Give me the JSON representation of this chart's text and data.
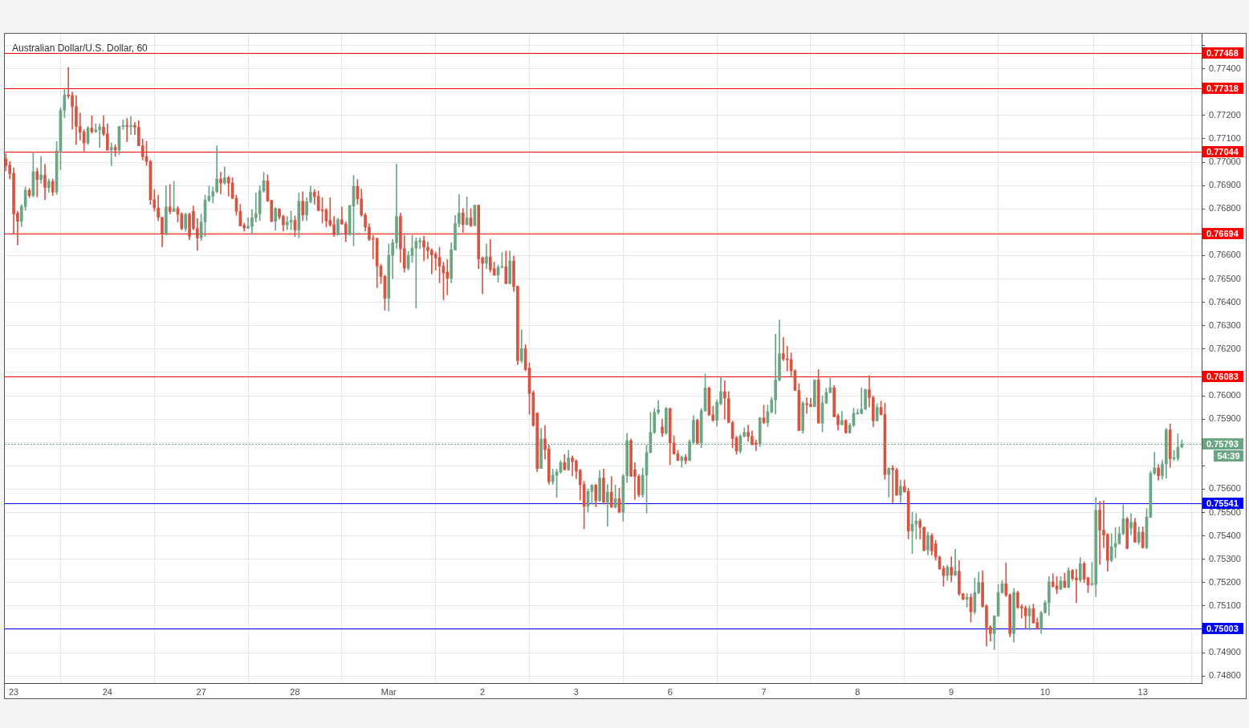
{
  "chart_data": {
    "type": "candlestick",
    "title": "Australian Dollar/U.S. Dollar, 60",
    "categories": [
      null,
      null,
      "23",
      null,
      null,
      null,
      null,
      null,
      null,
      null,
      null,
      null,
      null,
      null,
      null,
      null,
      null,
      null,
      null,
      null,
      null,
      null,
      null,
      null,
      null,
      null,
      "24",
      null,
      null,
      null,
      null,
      null,
      null,
      null,
      null,
      null,
      null,
      null,
      null,
      null,
      null,
      null,
      null,
      null,
      null,
      null,
      null,
      null,
      null,
      null,
      "27",
      null,
      null,
      null,
      null,
      null,
      null,
      null,
      null,
      null,
      null,
      null,
      null,
      null,
      null,
      null,
      null,
      null,
      null,
      null,
      null,
      null,
      null,
      null,
      "28",
      null,
      null,
      null,
      null,
      null,
      null,
      null,
      null,
      null,
      null,
      null,
      null,
      null,
      null,
      null,
      null,
      null,
      null,
      null,
      null,
      null,
      null,
      null,
      "Mar",
      null,
      null,
      null,
      null,
      null,
      null,
      null,
      null,
      null,
      null,
      null,
      null,
      null,
      null,
      null,
      null,
      null,
      null,
      null,
      null,
      null,
      null,
      null,
      "2",
      null,
      null,
      null,
      null,
      null,
      null,
      null,
      null,
      null,
      null,
      null,
      null,
      null,
      null,
      null,
      null,
      null,
      null,
      null,
      null,
      null,
      null,
      null,
      "3",
      null,
      null,
      null,
      null,
      null,
      null,
      null,
      null,
      null,
      null,
      null,
      null,
      null,
      null,
      null,
      null,
      null,
      null,
      null,
      null,
      null,
      null,
      null,
      "6",
      null,
      null,
      null,
      null,
      null,
      null,
      null,
      null,
      null,
      null,
      null,
      null,
      null,
      null,
      null,
      null,
      null,
      null,
      null,
      null,
      null,
      null,
      null,
      "7",
      null,
      null,
      null,
      null,
      null,
      null,
      null,
      null,
      null,
      null,
      null,
      null,
      null,
      null,
      null,
      null,
      null,
      null,
      null,
      null,
      null,
      null,
      null,
      "8",
      null,
      null,
      null,
      null,
      null,
      null,
      null,
      null,
      null,
      null,
      null,
      null,
      null,
      null,
      null,
      null,
      null,
      null,
      null,
      null,
      null,
      null,
      null,
      "9",
      null,
      null,
      null,
      null,
      null,
      null,
      null,
      null,
      null,
      null,
      null,
      null,
      null,
      null,
      null,
      null,
      null,
      null,
      null,
      null,
      null,
      null,
      null,
      "10",
      null,
      null,
      null,
      null,
      null,
      null,
      null,
      null,
      null,
      null,
      null,
      null,
      null,
      null,
      null,
      null,
      null,
      null,
      null,
      null,
      null,
      null,
      null,
      null,
      "13",
      null,
      null,
      null,
      null,
      null,
      null,
      null,
      null,
      null,
      null
    ],
    "ohlc": [
      [
        0.77014,
        0.77037,
        0.76962,
        0.76985
      ],
      [
        0.76987,
        0.77002,
        0.76928,
        0.76951
      ],
      [
        0.76953,
        0.76976,
        0.76693,
        0.76778
      ],
      [
        0.76781,
        0.7679,
        0.76646,
        0.76747
      ],
      [
        0.76747,
        0.76819,
        0.76725,
        0.76811
      ],
      [
        0.7681,
        0.76894,
        0.76794,
        0.7688
      ],
      [
        0.7688,
        0.76888,
        0.76848,
        0.76857
      ],
      [
        0.76857,
        0.77043,
        0.76851,
        0.76959
      ],
      [
        0.76959,
        0.76974,
        0.76851,
        0.76926
      ],
      [
        0.76926,
        0.77025,
        0.76909,
        0.76945
      ],
      [
        0.76945,
        0.76991,
        0.76839,
        0.76892
      ],
      [
        0.76892,
        0.76928,
        0.7687,
        0.76918
      ],
      [
        0.76918,
        0.76928,
        0.76857,
        0.76872
      ],
      [
        0.76872,
        0.77088,
        0.76862,
        0.77048
      ],
      [
        0.77048,
        0.77233,
        0.76968,
        0.77222
      ],
      [
        0.77222,
        0.77311,
        0.7719,
        0.77288
      ],
      [
        0.77288,
        0.77406,
        0.77273,
        0.77283
      ],
      [
        0.77285,
        0.773,
        0.77141,
        0.77238
      ],
      [
        0.77238,
        0.77285,
        0.77075,
        0.77153
      ],
      [
        0.77153,
        0.7721,
        0.77095,
        0.77128
      ],
      [
        0.7713,
        0.77139,
        0.77047,
        0.77082
      ],
      [
        0.77082,
        0.77153,
        0.77075,
        0.77146
      ],
      [
        0.77146,
        0.77199,
        0.77124,
        0.7713
      ],
      [
        0.7713,
        0.77164,
        0.77127,
        0.77139
      ],
      [
        0.77139,
        0.77164,
        0.77063,
        0.7715
      ],
      [
        0.7715,
        0.77199,
        0.77113,
        0.77121
      ],
      [
        0.77121,
        0.77164,
        0.7705,
        0.77052
      ],
      [
        0.77052,
        0.77082,
        0.76985,
        0.77063
      ],
      [
        0.77063,
        0.77075,
        0.77025,
        0.77052
      ],
      [
        0.77052,
        0.77153,
        0.77032,
        0.77153
      ],
      [
        0.77153,
        0.77181,
        0.77141,
        0.77157
      ],
      [
        0.77157,
        0.77187,
        0.77088,
        0.77153
      ],
      [
        0.77153,
        0.77196,
        0.77118,
        0.77157
      ],
      [
        0.77157,
        0.7717,
        0.77118,
        0.7715
      ],
      [
        0.7715,
        0.77178,
        0.7707,
        0.7707
      ],
      [
        0.7707,
        0.77099,
        0.77009,
        0.77024
      ],
      [
        0.77024,
        0.77089,
        0.76985,
        0.77003
      ],
      [
        0.77003,
        0.77009,
        0.76819,
        0.76839
      ],
      [
        0.76839,
        0.76883,
        0.7679,
        0.76804
      ],
      [
        0.76804,
        0.76859,
        0.7675,
        0.76764
      ],
      [
        0.76764,
        0.76764,
        0.76638,
        0.76695
      ],
      [
        0.76695,
        0.76899,
        0.76688,
        0.76808
      ],
      [
        0.76808,
        0.76905,
        0.76778,
        0.76789
      ],
      [
        0.76789,
        0.76918,
        0.76789,
        0.76801
      ],
      [
        0.76801,
        0.7681,
        0.76744,
        0.76777
      ],
      [
        0.76778,
        0.76784,
        0.7671,
        0.76716
      ],
      [
        0.76716,
        0.76782,
        0.76704,
        0.76777
      ],
      [
        0.76777,
        0.76782,
        0.76668,
        0.76682
      ],
      [
        0.7679,
        0.76813,
        0.7671,
        0.76716
      ],
      [
        0.76716,
        0.76759,
        0.76622,
        0.76676
      ],
      [
        0.76676,
        0.76778,
        0.76664,
        0.76744
      ],
      [
        0.76744,
        0.76859,
        0.76682,
        0.76837
      ],
      [
        0.76837,
        0.76898,
        0.76831,
        0.76854
      ],
      [
        0.76854,
        0.76894,
        0.76825,
        0.76874
      ],
      [
        0.76874,
        0.7707,
        0.76868,
        0.76928
      ],
      [
        0.76928,
        0.76957,
        0.76865,
        0.76911
      ],
      [
        0.76911,
        0.7698,
        0.76905,
        0.76934
      ],
      [
        0.76934,
        0.7694,
        0.76854,
        0.76911
      ],
      [
        0.76911,
        0.76934,
        0.76842,
        0.76846
      ],
      [
        0.76846,
        0.76859,
        0.76773,
        0.7679
      ],
      [
        0.7679,
        0.76819,
        0.76727,
        0.76727
      ],
      [
        0.76729,
        0.76739,
        0.76704,
        0.76718
      ],
      [
        0.76718,
        0.76762,
        0.76716,
        0.76725
      ],
      [
        0.76725,
        0.76796,
        0.7669,
        0.76762
      ],
      [
        0.76762,
        0.76868,
        0.76744,
        0.76779
      ],
      [
        0.76779,
        0.76899,
        0.7675,
        0.76877
      ],
      [
        0.76877,
        0.76957,
        0.7687,
        0.7692
      ],
      [
        0.7692,
        0.76946,
        0.76831,
        0.76834
      ],
      [
        0.76837,
        0.76837,
        0.76744,
        0.76747
      ],
      [
        0.76747,
        0.76806,
        0.76708,
        0.76802
      ],
      [
        0.76799,
        0.76802,
        0.76756,
        0.76766
      ],
      [
        0.76768,
        0.76774,
        0.76705,
        0.76731
      ],
      [
        0.76731,
        0.76768,
        0.7671,
        0.76743
      ],
      [
        0.76743,
        0.76791,
        0.7671,
        0.76751
      ],
      [
        0.76751,
        0.7677,
        0.76682,
        0.7671
      ],
      [
        0.7671,
        0.76868,
        0.76676,
        0.76833
      ],
      [
        0.76833,
        0.76874,
        0.7675,
        0.76774
      ],
      [
        0.76774,
        0.76848,
        0.7675,
        0.76831
      ],
      [
        0.76831,
        0.76898,
        0.76825,
        0.76871
      ],
      [
        0.76871,
        0.76883,
        0.7682,
        0.76852
      ],
      [
        0.76854,
        0.76877,
        0.76791,
        0.76793
      ],
      [
        0.76795,
        0.76848,
        0.76739,
        0.76793
      ],
      [
        0.76795,
        0.76802,
        0.76722,
        0.76748
      ],
      [
        0.76751,
        0.76848,
        0.76724,
        0.76731
      ],
      [
        0.76733,
        0.76768,
        0.76682,
        0.7669
      ],
      [
        0.7669,
        0.7676,
        0.76687,
        0.76754
      ],
      [
        0.76754,
        0.76808,
        0.76733,
        0.76736
      ],
      [
        0.76736,
        0.76745,
        0.76659,
        0.7669
      ],
      [
        0.7669,
        0.76816,
        0.76687,
        0.76814
      ],
      [
        0.76812,
        0.76943,
        0.76641,
        0.76897
      ],
      [
        0.76897,
        0.76926,
        0.7682,
        0.76843
      ],
      [
        0.76843,
        0.76885,
        0.76768,
        0.76774
      ],
      [
        0.76774,
        0.76782,
        0.76705,
        0.76722
      ],
      [
        0.76722,
        0.76736,
        0.76664,
        0.7667
      ],
      [
        0.76672,
        0.76687,
        0.76586,
        0.7667
      ],
      [
        0.76672,
        0.76676,
        0.76463,
        0.76555
      ],
      [
        0.76555,
        0.76563,
        0.7648,
        0.76511
      ],
      [
        0.76511,
        0.76517,
        0.76366,
        0.76417
      ],
      [
        0.76417,
        0.7665,
        0.76363,
        0.76601
      ],
      [
        0.76601,
        0.7667,
        0.76501,
        0.76655
      ],
      [
        0.76655,
        0.76992,
        0.7663,
        0.76768
      ],
      [
        0.76768,
        0.76782,
        0.76572,
        0.7663
      ],
      [
        0.7663,
        0.76687,
        0.76529,
        0.76546
      ],
      [
        0.76546,
        0.76618,
        0.76538,
        0.76601
      ],
      [
        0.76601,
        0.76687,
        0.76572,
        0.76632
      ],
      [
        0.76632,
        0.76676,
        0.76375,
        0.76661
      ],
      [
        0.76659,
        0.76676,
        0.7663,
        0.76664
      ],
      [
        0.76664,
        0.76684,
        0.76578,
        0.76636
      ],
      [
        0.76636,
        0.76659,
        0.76586,
        0.76621
      ],
      [
        0.76623,
        0.7663,
        0.76521,
        0.76603
      ],
      [
        0.76607,
        0.76616,
        0.76538,
        0.7659
      ],
      [
        0.76592,
        0.76636,
        0.76483,
        0.76555
      ],
      [
        0.76555,
        0.76572,
        0.76411,
        0.76526
      ],
      [
        0.7653,
        0.76584,
        0.76432,
        0.76503
      ],
      [
        0.76503,
        0.76655,
        0.76483,
        0.76626
      ],
      [
        0.76624,
        0.76771,
        0.76624,
        0.76737
      ],
      [
        0.76737,
        0.76862,
        0.76722,
        0.76782
      ],
      [
        0.76782,
        0.76802,
        0.76699,
        0.76733
      ],
      [
        0.76733,
        0.76851,
        0.76731,
        0.76761
      ],
      [
        0.76761,
        0.76802,
        0.76724,
        0.76728
      ],
      [
        0.76728,
        0.76816,
        0.76728,
        0.76816
      ],
      [
        0.76816,
        0.76816,
        0.76544,
        0.76586
      ],
      [
        0.7659,
        0.76595,
        0.76437,
        0.76567
      ],
      [
        0.76567,
        0.7665,
        0.76544,
        0.76595
      ],
      [
        0.76595,
        0.76669,
        0.76529,
        0.7654
      ],
      [
        0.76544,
        0.76572,
        0.76515,
        0.76517
      ],
      [
        0.76517,
        0.76559,
        0.76486,
        0.7655
      ],
      [
        0.7655,
        0.76613,
        0.76546,
        0.76553
      ],
      [
        0.76553,
        0.7662,
        0.7648,
        0.7648
      ],
      [
        0.7648,
        0.7662,
        0.76478,
        0.76577
      ],
      [
        0.76577,
        0.76598,
        0.76446,
        0.76467
      ],
      [
        0.76469,
        0.76469,
        0.76133,
        0.7615
      ],
      [
        0.7615,
        0.76282,
        0.76141,
        0.76202
      ],
      [
        0.76202,
        0.76219,
        0.76107,
        0.76112
      ],
      [
        0.76118,
        0.76141,
        0.75921,
        0.7601
      ],
      [
        0.76013,
        0.76022,
        0.75869,
        0.75873
      ],
      [
        0.75926,
        0.75926,
        0.75674,
        0.75689
      ],
      [
        0.75689,
        0.75861,
        0.75689,
        0.75815
      ],
      [
        0.75815,
        0.75873,
        0.75728,
        0.75769
      ],
      [
        0.75772,
        0.75789,
        0.75622,
        0.75632
      ],
      [
        0.75632,
        0.75686,
        0.7562,
        0.7566
      ],
      [
        0.7566,
        0.75686,
        0.75565,
        0.75674
      ],
      [
        0.75674,
        0.75723,
        0.75668,
        0.75714
      ],
      [
        0.75714,
        0.75749,
        0.75682,
        0.75683
      ],
      [
        0.75683,
        0.75766,
        0.7568,
        0.75734
      ],
      [
        0.75734,
        0.75743,
        0.75657,
        0.75718
      ],
      [
        0.7572,
        0.75726,
        0.75645,
        0.75677
      ],
      [
        0.7568,
        0.75686,
        0.75554,
        0.7562
      ],
      [
        0.7562,
        0.75634,
        0.7543,
        0.75527
      ],
      [
        0.75527,
        0.756,
        0.75502,
        0.75591
      ],
      [
        0.75591,
        0.7562,
        0.75536,
        0.75617
      ],
      [
        0.75617,
        0.75622,
        0.75525,
        0.75551
      ],
      [
        0.75551,
        0.7568,
        0.75548,
        0.75648
      ],
      [
        0.75648,
        0.75686,
        0.75536,
        0.75544
      ],
      [
        0.75544,
        0.7562,
        0.75441,
        0.75588
      ],
      [
        0.75588,
        0.75654,
        0.75521,
        0.75523
      ],
      [
        0.75523,
        0.75617,
        0.75519,
        0.75559
      ],
      [
        0.75559,
        0.75605,
        0.75498,
        0.75502
      ],
      [
        0.75502,
        0.75663,
        0.75462,
        0.75657
      ],
      [
        0.75657,
        0.7584,
        0.75628,
        0.75808
      ],
      [
        0.75808,
        0.75815,
        0.75655,
        0.75655
      ],
      [
        0.75683,
        0.75714,
        0.75556,
        0.75655
      ],
      [
        0.75655,
        0.75663,
        0.75567,
        0.75576
      ],
      [
        0.75576,
        0.75691,
        0.75565,
        0.7566
      ],
      [
        0.7566,
        0.75789,
        0.75498,
        0.75757
      ],
      [
        0.75757,
        0.75929,
        0.75755,
        0.75843
      ],
      [
        0.75843,
        0.75946,
        0.75838,
        0.75929
      ],
      [
        0.75929,
        0.7598,
        0.75921,
        0.7594
      ],
      [
        0.75867,
        0.759,
        0.75825,
        0.7584
      ],
      [
        0.7584,
        0.7595,
        0.75835,
        0.75946
      ],
      [
        0.75946,
        0.75946,
        0.75705,
        0.75798
      ],
      [
        0.75798,
        0.75829,
        0.75749,
        0.75752
      ],
      [
        0.75752,
        0.75766,
        0.75722,
        0.75723
      ],
      [
        0.75723,
        0.75743,
        0.75694,
        0.75737
      ],
      [
        0.75737,
        0.75749,
        0.75708,
        0.75723
      ],
      [
        0.75723,
        0.75812,
        0.75723,
        0.75804
      ],
      [
        0.75801,
        0.75915,
        0.75795,
        0.75895
      ],
      [
        0.75895,
        0.759,
        0.75792,
        0.75798
      ],
      [
        0.75798,
        0.75946,
        0.75778,
        0.75936
      ],
      [
        0.75936,
        0.76093,
        0.75932,
        0.76033
      ],
      [
        0.76033,
        0.76038,
        0.75915,
        0.75918
      ],
      [
        0.75918,
        0.75955,
        0.7589,
        0.75895
      ],
      [
        0.75895,
        0.75984,
        0.75869,
        0.75972
      ],
      [
        0.75966,
        0.76081,
        0.7596,
        0.76018
      ],
      [
        0.76018,
        0.76064,
        0.759,
        0.7599
      ],
      [
        0.75987,
        0.76018,
        0.75884,
        0.75886
      ],
      [
        0.75886,
        0.75892,
        0.75777,
        0.75817
      ],
      [
        0.7582,
        0.75827,
        0.75749,
        0.75763
      ],
      [
        0.75763,
        0.75835,
        0.75754,
        0.75827
      ],
      [
        0.75827,
        0.75863,
        0.75823,
        0.75843
      ],
      [
        0.75843,
        0.75874,
        0.75805,
        0.75826
      ],
      [
        0.75826,
        0.7585,
        0.75788,
        0.75793
      ],
      [
        0.75798,
        0.75811,
        0.75765,
        0.75793
      ],
      [
        0.75793,
        0.75908,
        0.75782,
        0.75905
      ],
      [
        0.75905,
        0.7596,
        0.7588,
        0.75885
      ],
      [
        0.75885,
        0.7596,
        0.75868,
        0.75931
      ],
      [
        0.75931,
        0.75994,
        0.75925,
        0.75983
      ],
      [
        0.75983,
        0.76264,
        0.75922,
        0.76067
      ],
      [
        0.76067,
        0.76324,
        0.76063,
        0.7618
      ],
      [
        0.7618,
        0.7625,
        0.76151,
        0.76158
      ],
      [
        0.76158,
        0.76212,
        0.76106,
        0.76154
      ],
      [
        0.76155,
        0.76184,
        0.7608,
        0.76107
      ],
      [
        0.76107,
        0.76112,
        0.76023,
        0.76023
      ],
      [
        0.76023,
        0.76052,
        0.75851,
        0.75851
      ],
      [
        0.75851,
        0.75975,
        0.75839,
        0.75968
      ],
      [
        0.75966,
        0.75991,
        0.75925,
        0.75962
      ],
      [
        0.75963,
        0.75989,
        0.75952,
        0.75954
      ],
      [
        0.75954,
        0.76069,
        0.75952,
        0.76067
      ],
      [
        0.76067,
        0.76112,
        0.75883,
        0.75883
      ],
      [
        0.75883,
        0.76,
        0.75845,
        0.75969
      ],
      [
        0.75969,
        0.76032,
        0.75966,
        0.76014
      ],
      [
        0.76014,
        0.76075,
        0.76011,
        0.76034
      ],
      [
        0.76034,
        0.76044,
        0.7591,
        0.7591
      ],
      [
        0.75914,
        0.75922,
        0.75853,
        0.75876
      ],
      [
        0.75876,
        0.75933,
        0.75874,
        0.75894
      ],
      [
        0.75894,
        0.75897,
        0.75839,
        0.75842
      ],
      [
        0.75842,
        0.75883,
        0.75839,
        0.75874
      ],
      [
        0.75874,
        0.75948,
        0.75868,
        0.75925
      ],
      [
        0.75923,
        0.75943,
        0.7592,
        0.75925
      ],
      [
        0.75924,
        0.76034,
        0.75922,
        0.75943
      ],
      [
        0.75943,
        0.76029,
        0.7594,
        0.76026
      ],
      [
        0.76026,
        0.76086,
        0.75952,
        0.75992
      ],
      [
        0.75992,
        0.76,
        0.75868,
        0.75893
      ],
      [
        0.75893,
        0.75966,
        0.75891,
        0.7595
      ],
      [
        0.7595,
        0.75977,
        0.75917,
        0.7592
      ],
      [
        0.7592,
        0.75968,
        0.75642,
        0.75663
      ],
      [
        0.75663,
        0.75692,
        0.75566,
        0.7569
      ],
      [
        0.7569,
        0.75702,
        0.75541,
        0.75683
      ],
      [
        0.75683,
        0.7569,
        0.75573,
        0.75575
      ],
      [
        0.75575,
        0.75639,
        0.75543,
        0.75612
      ],
      [
        0.75612,
        0.75639,
        0.75587,
        0.75589
      ],
      [
        0.75591,
        0.75605,
        0.75387,
        0.75421
      ],
      [
        0.75421,
        0.75502,
        0.75324,
        0.7545
      ],
      [
        0.7545,
        0.75496,
        0.75387,
        0.75464
      ],
      [
        0.75464,
        0.75473,
        0.75387,
        0.75436
      ],
      [
        0.75436,
        0.75439,
        0.75335,
        0.75339
      ],
      [
        0.75339,
        0.75416,
        0.75318,
        0.75402
      ],
      [
        0.75402,
        0.7541,
        0.75318,
        0.75335
      ],
      [
        0.75367,
        0.75381,
        0.75295,
        0.75309
      ],
      [
        0.75309,
        0.75315,
        0.75257,
        0.75258
      ],
      [
        0.75261,
        0.75272,
        0.75184,
        0.7523
      ],
      [
        0.7523,
        0.75276,
        0.75209,
        0.75266
      ],
      [
        0.75266,
        0.7531,
        0.75203,
        0.75232
      ],
      [
        0.75232,
        0.75344,
        0.7523,
        0.75249
      ],
      [
        0.75249,
        0.75295,
        0.75146,
        0.75152
      ],
      [
        0.75152,
        0.75154,
        0.75126,
        0.75129
      ],
      [
        0.75129,
        0.75154,
        0.75095,
        0.75137
      ],
      [
        0.75137,
        0.75152,
        0.75031,
        0.75075
      ],
      [
        0.75075,
        0.7522,
        0.75066,
        0.75157
      ],
      [
        0.75157,
        0.75245,
        0.75152,
        0.752
      ],
      [
        0.752,
        0.75251,
        0.75094,
        0.75098
      ],
      [
        0.751,
        0.75106,
        0.74928,
        0.75008
      ],
      [
        0.7501,
        0.75016,
        0.7495,
        0.74982
      ],
      [
        0.74982,
        0.75058,
        0.74913,
        0.75058
      ],
      [
        0.75058,
        0.75192,
        0.75054,
        0.75157
      ],
      [
        0.75157,
        0.75209,
        0.75154,
        0.75195
      ],
      [
        0.75195,
        0.75284,
        0.7514,
        0.75146
      ],
      [
        0.75148,
        0.75152,
        0.74968,
        0.74982
      ],
      [
        0.74982,
        0.75175,
        0.74945,
        0.75157
      ],
      [
        0.75157,
        0.75163,
        0.75089,
        0.75094
      ],
      [
        0.75097,
        0.75106,
        0.75048,
        0.75091
      ],
      [
        0.75092,
        0.751,
        0.75003,
        0.75058
      ],
      [
        0.75058,
        0.751,
        0.74998,
        0.75089
      ],
      [
        0.75089,
        0.75108,
        0.75025,
        0.75028
      ],
      [
        0.75029,
        0.75048,
        0.75,
        0.75003
      ],
      [
        0.75003,
        0.75077,
        0.74982,
        0.75071
      ],
      [
        0.75071,
        0.75123,
        0.75069,
        0.75114
      ],
      [
        0.75114,
        0.75226,
        0.7506,
        0.75203
      ],
      [
        0.75203,
        0.75238,
        0.7518,
        0.75184
      ],
      [
        0.75186,
        0.75226,
        0.75152,
        0.75172
      ],
      [
        0.75172,
        0.75226,
        0.75169,
        0.75207
      ],
      [
        0.75207,
        0.75241,
        0.75177,
        0.7518
      ],
      [
        0.7518,
        0.75264,
        0.75177,
        0.75251
      ],
      [
        0.75251,
        0.75257,
        0.75209,
        0.75218
      ],
      [
        0.7522,
        0.75257,
        0.75115,
        0.75211
      ],
      [
        0.75211,
        0.75307,
        0.75203,
        0.75281
      ],
      [
        0.75281,
        0.75289,
        0.752,
        0.75215
      ],
      [
        0.75221,
        0.75223,
        0.75157,
        0.7519
      ],
      [
        0.75192,
        0.75287,
        0.75188,
        0.75195
      ],
      [
        0.75192,
        0.75565,
        0.7514,
        0.7551
      ],
      [
        0.7551,
        0.75548,
        0.75278,
        0.75425
      ],
      [
        0.75425,
        0.75551,
        0.75349,
        0.75404
      ],
      [
        0.75406,
        0.7541,
        0.75249,
        0.75295
      ],
      [
        0.75295,
        0.7541,
        0.75289,
        0.75353
      ],
      [
        0.75353,
        0.75436,
        0.75307,
        0.75367
      ],
      [
        0.75367,
        0.75439,
        0.75364,
        0.7541
      ],
      [
        0.7541,
        0.75534,
        0.75404,
        0.75473
      ],
      [
        0.75473,
        0.75479,
        0.75344,
        0.75347
      ],
      [
        0.75433,
        0.75496,
        0.75404,
        0.75458
      ],
      [
        0.75458,
        0.75475,
        0.75372,
        0.75373
      ],
      [
        0.75373,
        0.75439,
        0.75364,
        0.75416
      ],
      [
        0.75416,
        0.75439,
        0.75347,
        0.7535
      ],
      [
        0.7535,
        0.75517,
        0.75344,
        0.75481
      ],
      [
        0.75479,
        0.75677,
        0.75479,
        0.75668
      ],
      [
        0.75668,
        0.75758,
        0.75662,
        0.75691
      ],
      [
        0.75691,
        0.75705,
        0.75639,
        0.75657
      ],
      [
        0.75657,
        0.75725,
        0.75643,
        0.75708
      ],
      [
        0.75708,
        0.75861,
        0.75647,
        0.75854
      ],
      [
        0.75854,
        0.7588,
        0.75693,
        0.75731
      ],
      [
        0.75731,
        0.75766,
        0.75723,
        0.75733
      ],
      [
        0.75731,
        0.75837,
        0.75722,
        0.7578
      ],
      [
        0.7578,
        0.75811,
        0.75777,
        0.75793
      ]
    ],
    "colors": [
      "#d75442",
      "#d75442",
      "#d75442",
      "#d75442",
      "#6ba583",
      "#6ba583",
      "#d75442",
      "#6ba583",
      "#d75442",
      "#6ba583",
      "#d75442",
      "#6ba583",
      "#d75442",
      "#6ba583",
      "#6ba583",
      "#6ba583",
      "#d75442",
      "#d75442",
      "#d75442",
      "#d75442",
      "#d75442",
      "#6ba583",
      "#d75442",
      "#6ba583",
      "#6ba583",
      "#d75442",
      "#d75442",
      "#6ba583",
      "#d75442",
      "#6ba583",
      "#6ba583",
      "#d75442",
      "#6ba583",
      "#d75442",
      "#d75442",
      "#d75442",
      "#d75442",
      "#d75442",
      "#d75442",
      "#d75442",
      "#d75442",
      "#6ba583",
      "#d75442",
      "#6ba583",
      "#d75442",
      "#d75442",
      "#6ba583",
      "#d75442",
      "#d75442",
      "#d75442",
      "#6ba583",
      "#6ba583",
      "#6ba583",
      "#6ba583",
      "#6ba583",
      "#d75442",
      "#6ba583",
      "#d75442",
      "#d75442",
      "#d75442",
      "#d75442",
      "#d75442",
      "#6ba583",
      "#6ba583",
      "#6ba583",
      "#6ba583",
      "#6ba583",
      "#d75442",
      "#d75442",
      "#6ba583",
      "#d75442",
      "#d75442",
      "#6ba583",
      "#6ba583",
      "#d75442",
      "#6ba583",
      "#d75442",
      "#6ba583",
      "#6ba583",
      "#d75442",
      "#d75442",
      "#d75442",
      "#d75442",
      "#d75442",
      "#d75442",
      "#6ba583",
      "#d75442",
      "#d75442",
      "#6ba583",
      "#6ba583",
      "#d75442",
      "#d75442",
      "#d75442",
      "#d75442",
      "#d75442",
      "#d75442",
      "#d75442",
      "#d75442",
      "#6ba583",
      "#6ba583",
      "#6ba583",
      "#d75442",
      "#d75442",
      "#6ba583",
      "#6ba583",
      "#6ba583",
      "#6ba583",
      "#d75442",
      "#d75442",
      "#d75442",
      "#d75442",
      "#d75442",
      "#d75442",
      "#d75442",
      "#6ba583",
      "#6ba583",
      "#6ba583",
      "#d75442",
      "#6ba583",
      "#d75442",
      "#6ba583",
      "#d75442",
      "#d75442",
      "#6ba583",
      "#d75442",
      "#d75442",
      "#6ba583",
      "#6ba583",
      "#d75442",
      "#6ba583",
      "#d75442",
      "#d75442",
      "#6ba583",
      "#d75442",
      "#d75442",
      "#d75442",
      "#d75442",
      "#6ba583",
      "#d75442",
      "#d75442",
      "#6ba583",
      "#6ba583",
      "#6ba583",
      "#d75442",
      "#6ba583",
      "#d75442",
      "#d75442",
      "#d75442",
      "#d75442",
      "#6ba583",
      "#6ba583",
      "#d75442",
      "#6ba583",
      "#d75442",
      "#6ba583",
      "#d75442",
      "#6ba583",
      "#d75442",
      "#6ba583",
      "#6ba583",
      "#d75442",
      "#d75442",
      "#d75442",
      "#6ba583",
      "#6ba583",
      "#6ba583",
      "#6ba583",
      "#6ba583",
      "#d75442",
      "#6ba583",
      "#d75442",
      "#d75442",
      "#d75442",
      "#6ba583",
      "#d75442",
      "#6ba583",
      "#6ba583",
      "#d75442",
      "#6ba583",
      "#6ba583",
      "#d75442",
      "#d75442",
      "#6ba583",
      "#6ba583",
      "#d75442",
      "#d75442",
      "#d75442",
      "#d75442",
      "#6ba583",
      "#6ba583",
      "#d75442",
      "#d75442",
      "#d75442",
      "#6ba583",
      "#d75442",
      "#6ba583",
      "#6ba583",
      "#6ba583",
      "#6ba583",
      "#d75442",
      "#d75442",
      "#d75442",
      "#d75442",
      "#d75442",
      "#6ba583",
      "#d75442",
      "#d75442",
      "#6ba583",
      "#d75442",
      "#6ba583",
      "#6ba583",
      "#6ba583",
      "#d75442",
      "#d75442",
      "#6ba583",
      "#d75442",
      "#6ba583",
      "#6ba583",
      "#6ba583",
      "#6ba583",
      "#6ba583",
      "#d75442",
      "#d75442",
      "#6ba583",
      "#d75442",
      "#d75442",
      "#6ba583",
      "#d75442",
      "#d75442",
      "#6ba583",
      "#d75442",
      "#d75442",
      "#6ba583",
      "#6ba583",
      "#d75442",
      "#d75442",
      "#6ba583",
      "#d75442",
      "#d75442",
      "#d75442",
      "#d75442",
      "#6ba583",
      "#d75442",
      "#6ba583",
      "#d75442",
      "#d75442",
      "#6ba583",
      "#d75442",
      "#6ba583",
      "#6ba583",
      "#d75442",
      "#d75442",
      "#d75442",
      "#6ba583",
      "#6ba583",
      "#6ba583",
      "#d75442",
      "#d75442",
      "#6ba583",
      "#d75442",
      "#d75442",
      "#d75442",
      "#6ba583",
      "#d75442",
      "#d75442",
      "#6ba583",
      "#6ba583",
      "#6ba583",
      "#d75442",
      "#d75442",
      "#6ba583",
      "#d75442",
      "#6ba583",
      "#d75442",
      "#d75442",
      "#6ba583",
      "#d75442",
      "#d75442",
      "#6ba583",
      "#6ba583",
      "#d75442",
      "#d75442",
      "#d75442",
      "#6ba583",
      "#6ba583",
      "#6ba583",
      "#6ba583",
      "#d75442",
      "#6ba583",
      "#d75442",
      "#6ba583",
      "#d75442",
      "#6ba583",
      "#6ba583",
      "#6ba583",
      "#d75442",
      "#6ba583",
      "#6ba583",
      "#d75442",
      "#6ba583",
      "#6ba583",
      "#6ba583"
    ],
    "ylim": [
      0.7477,
      0.7755
    ],
    "yticks": [
      {
        "value": 0.748,
        "label": "0.74800"
      },
      {
        "value": 0.749,
        "label": "0.74900"
      },
      {
        "value": 0.75,
        "label": null
      },
      {
        "value": 0.751,
        "label": "0.75100"
      },
      {
        "value": 0.752,
        "label": "0.75200"
      },
      {
        "value": 0.753,
        "label": "0.75300"
      },
      {
        "value": 0.754,
        "label": "0.75400"
      },
      {
        "value": 0.755,
        "label": "0.75500"
      },
      {
        "value": 0.756,
        "label": "0.75600"
      },
      {
        "value": 0.757,
        "label": null
      },
      {
        "value": 0.758,
        "label": null
      },
      {
        "value": 0.759,
        "label": "0.75900"
      },
      {
        "value": 0.76,
        "label": "0.76000"
      },
      {
        "value": 0.761,
        "label": null
      },
      {
        "value": 0.762,
        "label": "0.76200"
      },
      {
        "value": 0.763,
        "label": "0.76300"
      },
      {
        "value": 0.764,
        "label": "0.76400"
      },
      {
        "value": 0.765,
        "label": "0.76500"
      },
      {
        "value": 0.766,
        "label": "0.76600"
      },
      {
        "value": 0.767,
        "label": null
      },
      {
        "value": 0.768,
        "label": "0.76800"
      },
      {
        "value": 0.769,
        "label": "0.76900"
      },
      {
        "value": 0.77,
        "label": "0.77000"
      },
      {
        "value": 0.771,
        "label": "0.77100"
      },
      {
        "value": 0.772,
        "label": "0.77200"
      },
      {
        "value": 0.773,
        "label": null
      },
      {
        "value": 0.774,
        "label": "0.77400"
      },
      {
        "value": 0.775,
        "label": null
      }
    ],
    "grid": true,
    "ref_lines": [
      {
        "axis": "y",
        "value": 0.77468,
        "label": "0.77468",
        "color": "#ff0000"
      },
      {
        "axis": "y",
        "value": 0.77318,
        "label": "0.77318",
        "color": "#ff0000"
      },
      {
        "axis": "y",
        "value": 0.77044,
        "label": "0.77044",
        "color": "#ff0000"
      },
      {
        "axis": "y",
        "value": 0.76694,
        "label": "0.76694",
        "color": "#ff0000"
      },
      {
        "axis": "y",
        "value": 0.76083,
        "label": "0.76083",
        "color": "#ff0000"
      },
      {
        "axis": "y",
        "value": 0.75793,
        "label": "0.75793",
        "color": "#6ba583",
        "line_style": "dotted"
      },
      {
        "axis": "y",
        "value": 0.75541,
        "label": "0.75541",
        "color": "#0000ff"
      },
      {
        "axis": "y",
        "value": 0.75003,
        "label": "0.75003",
        "color": "#0000ff"
      }
    ],
    "annotations": [
      "54:39"
    ]
  }
}
